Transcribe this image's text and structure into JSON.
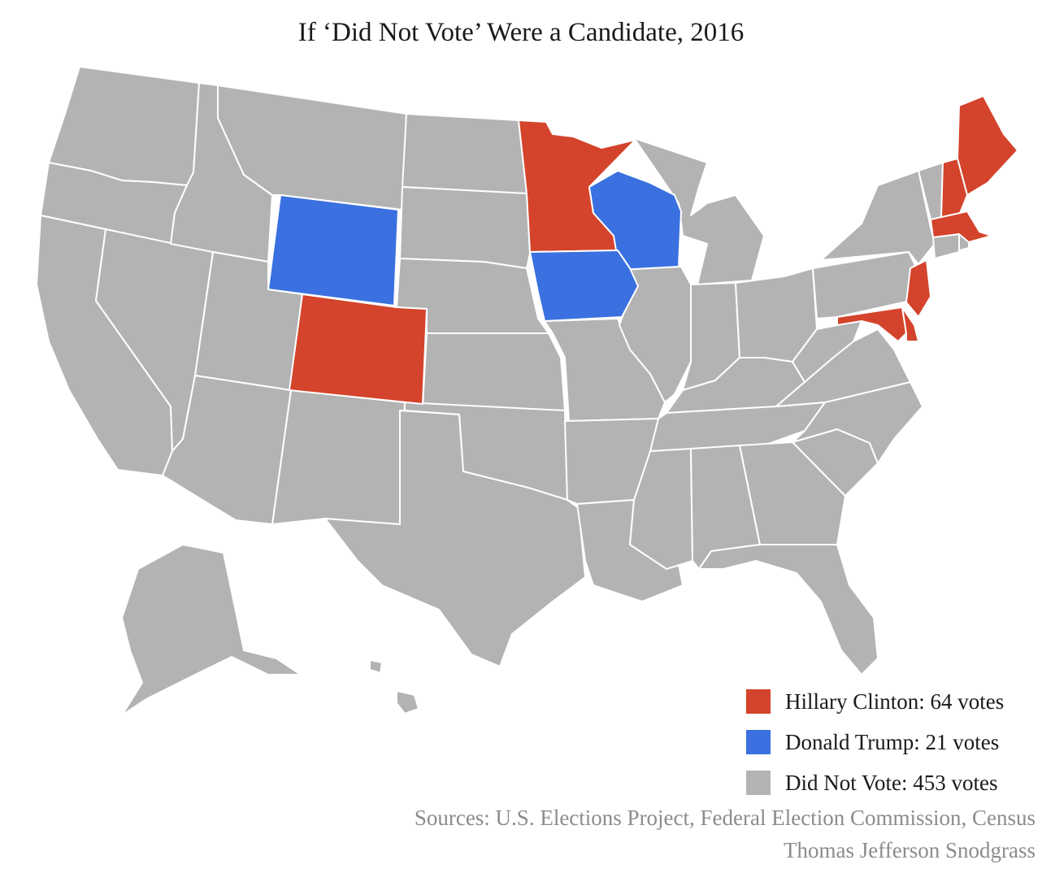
{
  "title": "If ‘Did Not Vote’ Were a Candidate, 2016",
  "colors": {
    "clinton": "#d4432b",
    "trump": "#3a70e0",
    "did_not_vote": "#b3b3b3",
    "border": "#ffffff"
  },
  "legend": [
    {
      "label": "Hillary Clinton: 64 votes",
      "color": "#d4432b"
    },
    {
      "label": "Donald Trump: 21 votes",
      "color": "#3a70e0"
    },
    {
      "label": "Did Not Vote: 453 votes",
      "color": "#b3b3b3"
    }
  ],
  "states": {
    "clinton": [
      "Minnesota",
      "Colorado",
      "Maine",
      "New Hampshire",
      "Massachusetts",
      "New Jersey",
      "Maryland",
      "Delaware",
      "District of Columbia"
    ],
    "trump": [
      "Wyoming",
      "Wisconsin",
      "Iowa"
    ]
  },
  "sources": {
    "line1": "Sources: U.S. Elections Project, Federal Election Commission, Census",
    "line2": "Thomas Jefferson Snodgrass"
  }
}
